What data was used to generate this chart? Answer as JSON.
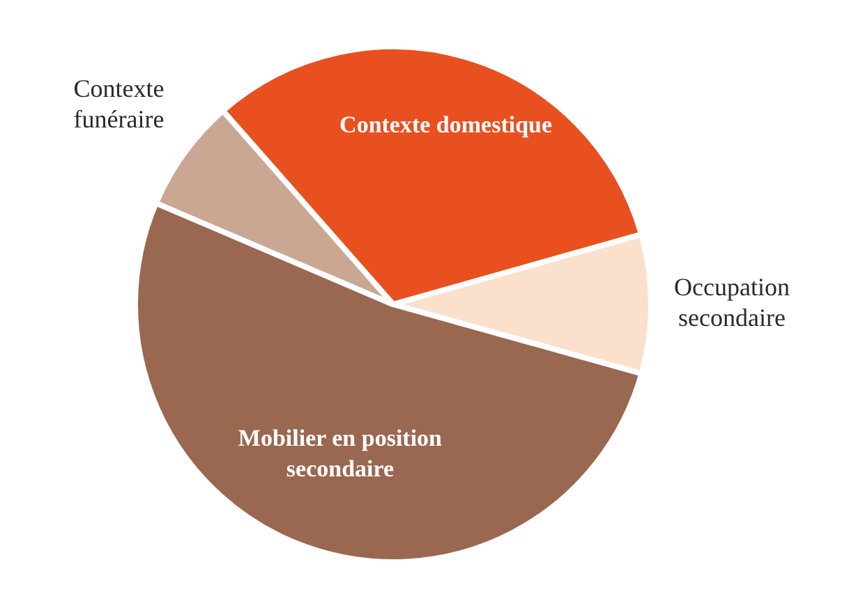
{
  "chart_data": {
    "type": "pie",
    "categories": [
      "Contexte domestique",
      "Occupation secondaire",
      "Mobilier en position secondaire",
      "Contexte funéraire"
    ],
    "values": [
      32.1,
      8.7,
      52.1,
      7.1
    ],
    "colors": [
      "#e8501f",
      "#fbe0cc",
      "#9a6751",
      "#c9a793"
    ],
    "legend": false
  }
}
